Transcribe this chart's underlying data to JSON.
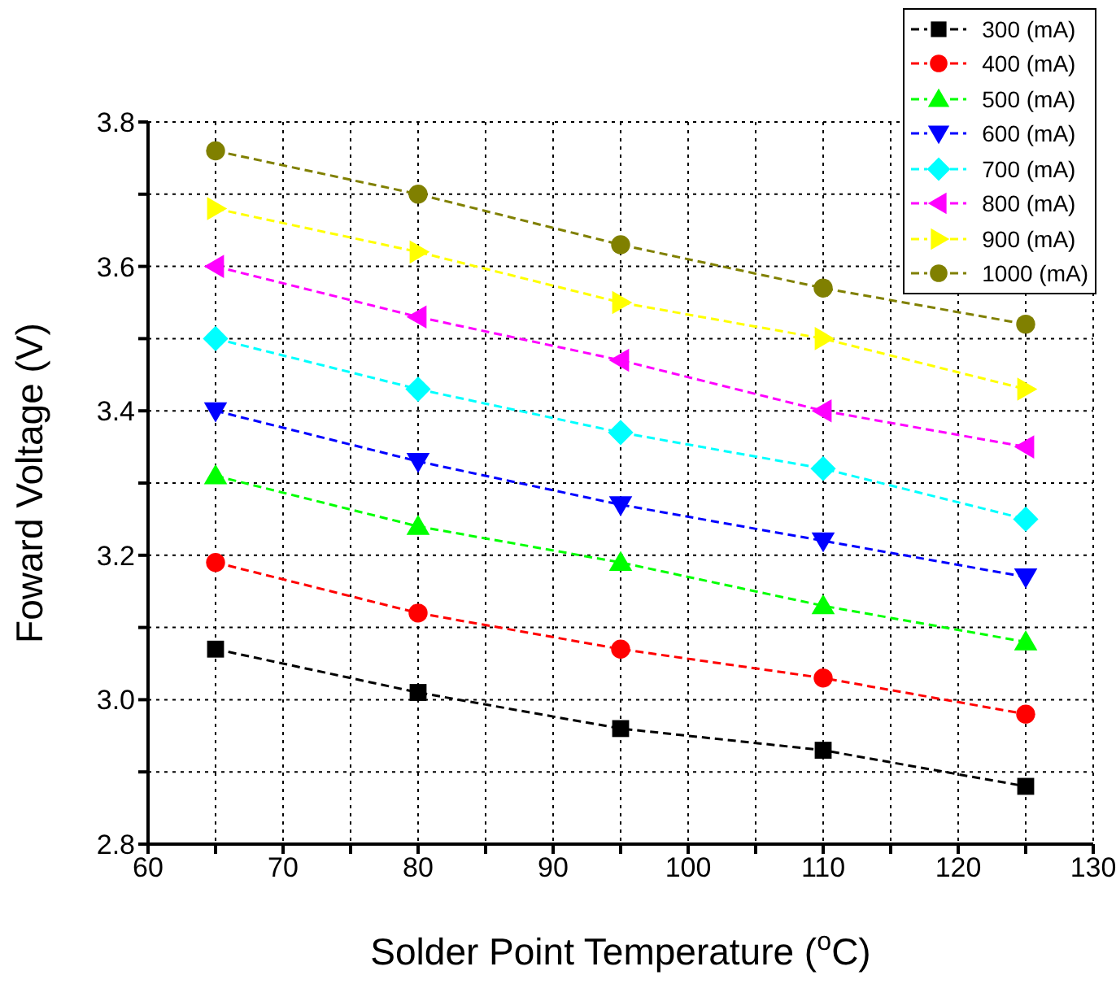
{
  "chart_data": {
    "type": "line",
    "xlabel": "Solder Point Temperature ($^{o}$C)",
    "ylabel": "Foward Voltage (V)",
    "x": [
      65,
      80,
      95,
      110,
      125
    ],
    "series": [
      {
        "name": "300 (mA)",
        "color": "#000000",
        "marker": "square",
        "values": [
          3.07,
          3.01,
          2.96,
          2.93,
          2.88
        ]
      },
      {
        "name": "400 (mA)",
        "color": "#ff0000",
        "marker": "circle",
        "values": [
          3.19,
          3.12,
          3.07,
          3.03,
          2.98
        ]
      },
      {
        "name": "500 (mA)",
        "color": "#00ff00",
        "marker": "triangle",
        "values": [
          3.31,
          3.24,
          3.19,
          3.13,
          3.08
        ]
      },
      {
        "name": "600 (mA)",
        "color": "#0000ff",
        "marker": "triangle-down",
        "values": [
          3.4,
          3.33,
          3.27,
          3.22,
          3.17
        ]
      },
      {
        "name": "700 (mA)",
        "color": "#00ffff",
        "marker": "diamond",
        "values": [
          3.5,
          3.43,
          3.37,
          3.32,
          3.25
        ]
      },
      {
        "name": "800 (mA)",
        "color": "#ff00ff",
        "marker": "triangle-left",
        "values": [
          3.6,
          3.53,
          3.47,
          3.4,
          3.35
        ]
      },
      {
        "name": "900 (mA)",
        "color": "#ffff00",
        "marker": "triangle-right",
        "values": [
          3.68,
          3.62,
          3.55,
          3.5,
          3.43
        ]
      },
      {
        "name": "1000 (mA)",
        "color": "#808000",
        "marker": "circle",
        "values": [
          3.76,
          3.7,
          3.63,
          3.57,
          3.52
        ]
      }
    ],
    "line_style": "dashed",
    "xlim": [
      60,
      130
    ],
    "xticks": [
      60,
      {
        "value": 65,
        "label": null
      },
      70,
      {
        "value": 75,
        "label": null
      },
      80,
      {
        "value": 85,
        "label": null
      },
      90,
      {
        "value": 95,
        "label": null
      },
      100,
      {
        "value": 105,
        "label": null
      },
      110,
      {
        "value": 115,
        "label": null
      },
      120,
      {
        "value": 125,
        "label": null
      },
      130
    ],
    "ylim": [
      2.8,
      3.8
    ],
    "yticks": [
      2.8,
      {
        "value": 2.9,
        "label": null
      },
      {
        "value": 3,
        "label": "3.0"
      },
      {
        "value": 3.1,
        "label": null
      },
      3.2,
      {
        "value": 3.3,
        "label": null
      },
      3.4,
      {
        "value": 3.5,
        "label": null
      },
      3.6,
      {
        "value": 3.7,
        "label": null
      },
      3.8
    ],
    "grid": true,
    "legend": "top right"
  }
}
